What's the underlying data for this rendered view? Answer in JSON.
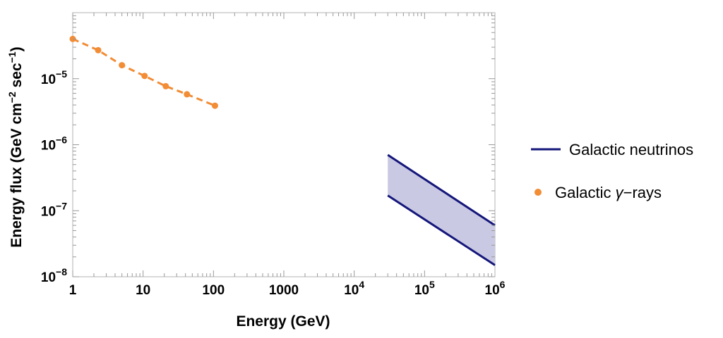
{
  "chart_data": {
    "type": "line",
    "x_scale": "log",
    "y_scale": "log",
    "xlim": [
      1,
      1000000
    ],
    "ylim": [
      1e-08,
      0.0001
    ],
    "xlabel": "Energy (GeV)",
    "ylabel": {
      "prefix": "Energy flux (GeV cm",
      "exp1": "−2",
      "mid": " sec",
      "exp2": "−1",
      "suffix": ")"
    },
    "x_ticks": [
      {
        "value": 1,
        "base": "1",
        "exp": ""
      },
      {
        "value": 10,
        "base": "10",
        "exp": ""
      },
      {
        "value": 100,
        "base": "100",
        "exp": ""
      },
      {
        "value": 1000,
        "base": "1000",
        "exp": ""
      },
      {
        "value": 10000,
        "base": "10",
        "exp": "4"
      },
      {
        "value": 100000,
        "base": "10",
        "exp": "5"
      },
      {
        "value": 1000000,
        "base": "10",
        "exp": "6"
      }
    ],
    "y_ticks": [
      {
        "value": 1e-08,
        "base": "10",
        "exp": "−8"
      },
      {
        "value": 1e-07,
        "base": "10",
        "exp": "−7"
      },
      {
        "value": 1e-06,
        "base": "10",
        "exp": "−6"
      },
      {
        "value": 1e-05,
        "base": "10",
        "exp": "−5"
      }
    ],
    "series": [
      {
        "name": "Galactic γ-rays",
        "style": "dashed-with-points",
        "color": "#f28c35",
        "x": [
          1,
          2.3,
          5,
          10.5,
          21,
          42,
          105
        ],
        "y": [
          4e-05,
          2.7e-05,
          1.6e-05,
          1.1e-05,
          7.7e-06,
          5.8e-06,
          3.9e-06
        ]
      },
      {
        "name": "Galactic neutrinos",
        "style": "band",
        "color": "#14167a",
        "fill": "#c9c9e4",
        "x": [
          30000,
          1000000
        ],
        "upper": [
          7e-07,
          6e-08
        ],
        "lower": [
          1.7e-07,
          1.5e-08
        ]
      }
    ],
    "legend": {
      "position": "right",
      "entries": [
        {
          "label": "Galactic neutrinos",
          "marker": "line",
          "color": "#14167a"
        },
        {
          "label_prefix": "Galactic ",
          "label_symbol": "γ",
          "label_suffix": "−rays",
          "marker": "dot",
          "color": "#f28c35"
        }
      ]
    }
  }
}
